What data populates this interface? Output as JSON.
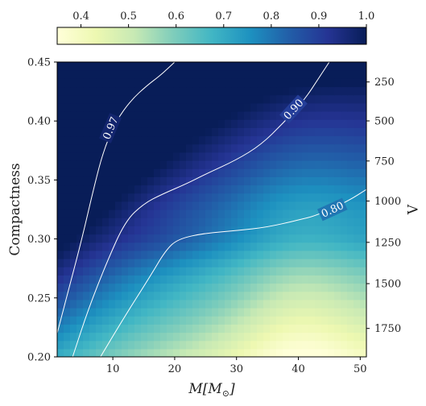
{
  "chart_data": {
    "type": "heatmap",
    "title": "",
    "xlabel": "M[M_⊙]",
    "xlabel_main": "M[M",
    "xlabel_sub": "⊙",
    "xlabel_close": "]",
    "ylabel": "Compactness",
    "y2label": "Λ",
    "xlim": [
      1,
      51
    ],
    "ylim": [
      0.2,
      0.45
    ],
    "x_ticks": [
      10,
      20,
      30,
      40,
      50
    ],
    "y_ticks": [
      0.2,
      0.25,
      0.3,
      0.35,
      0.4,
      0.45
    ],
    "y_tick_labels": [
      "0.20",
      "0.25",
      "0.30",
      "0.35",
      "0.40",
      "0.45"
    ],
    "lambda_ticks": [
      {
        "label": "250",
        "compactness": 0.4331
      },
      {
        "label": "500",
        "compactness": 0.4001
      },
      {
        "label": "750",
        "compactness": 0.3661
      },
      {
        "label": "1000",
        "compactness": 0.3321
      },
      {
        "label": "1250",
        "compactness": 0.2971
      },
      {
        "label": "1500",
        "compactness": 0.2621
      },
      {
        "label": "1750",
        "compactness": 0.2241
      }
    ],
    "colorbar": {
      "range": [
        0.35,
        1.0
      ],
      "ticks": [
        0.4,
        0.5,
        0.6,
        0.7,
        0.8,
        0.9,
        1.0
      ],
      "tick_labels": [
        "0.4",
        "0.5",
        "0.6",
        "0.7",
        "0.8",
        "0.9",
        "1.0"
      ],
      "colormap": "YlGnBu",
      "stops": [
        "#ffffd9",
        "#edf8b1",
        "#c7e9b4",
        "#7fcdbb",
        "#41b6c4",
        "#1d91c0",
        "#225ea8",
        "#253494",
        "#081d58"
      ]
    },
    "contours": [
      {
        "level": 0.97,
        "label": "0.97",
        "label_at": {
          "x": 9.6,
          "y": 0.394
        },
        "points": [
          [
            1.0,
            0.22
          ],
          [
            3.0,
            0.26
          ],
          [
            5.0,
            0.3
          ],
          [
            7.0,
            0.345
          ],
          [
            8.5,
            0.375
          ],
          [
            10.5,
            0.4
          ],
          [
            13.0,
            0.418
          ],
          [
            15.5,
            0.43
          ],
          [
            17.5,
            0.438
          ],
          [
            19.0,
            0.445
          ],
          [
            20.0,
            0.45
          ]
        ]
      },
      {
        "level": 0.9,
        "label": "0.90",
        "label_at": {
          "x": 39.2,
          "y": 0.41
        },
        "points": [
          [
            3.5,
            0.2
          ],
          [
            6.0,
            0.24
          ],
          [
            9.0,
            0.28
          ],
          [
            12.0,
            0.315
          ],
          [
            15.0,
            0.33
          ],
          [
            18.0,
            0.338
          ],
          [
            22.0,
            0.347
          ],
          [
            25.0,
            0.355
          ],
          [
            30.0,
            0.367
          ],
          [
            34.0,
            0.38
          ],
          [
            37.5,
            0.398
          ],
          [
            41.0,
            0.418
          ],
          [
            43.5,
            0.438
          ],
          [
            45.0,
            0.45
          ]
        ]
      },
      {
        "level": 0.8,
        "label": "0.80",
        "label_at": {
          "x": 45.5,
          "y": 0.325
        },
        "points": [
          [
            8.0,
            0.2
          ],
          [
            12.0,
            0.235
          ],
          [
            16.0,
            0.268
          ],
          [
            18.5,
            0.29
          ],
          [
            20.5,
            0.3
          ],
          [
            25.0,
            0.305
          ],
          [
            30.0,
            0.307
          ],
          [
            35.0,
            0.31
          ],
          [
            40.0,
            0.316
          ],
          [
            43.0,
            0.32
          ],
          [
            48.0,
            0.332
          ],
          [
            51.0,
            0.342
          ]
        ]
      }
    ]
  }
}
